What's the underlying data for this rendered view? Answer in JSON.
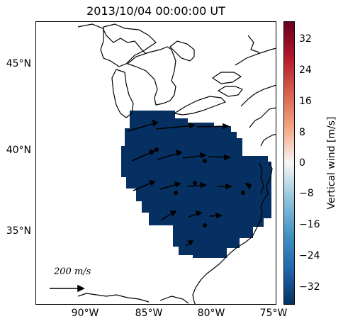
{
  "title": "2013/10/04 00:00:00 UT",
  "latitude_labels": [
    "45°N",
    "40°N",
    "35°N"
  ],
  "longitude_labels": [
    "90°W",
    "85°W",
    "80°W",
    "75°W"
  ],
  "colorbar": {
    "label": "Vertical wind [m/s]",
    "ticks": [
      "32",
      "24",
      "16",
      "8",
      "0",
      "−8",
      "−16",
      "−24",
      "−32"
    ],
    "range": [
      -36,
      36
    ],
    "colors": [
      "#053061",
      "#2166ac",
      "#4393c3",
      "#92c5de",
      "#f7f7f7",
      "#f4a582",
      "#d6604d",
      "#b2182b",
      "#67001f"
    ]
  },
  "map": {
    "region": "Great Lakes and US East Coast",
    "field_color": "#053061",
    "field_value": "≈ −36 m/s",
    "arrow_color": "#000000",
    "scale_label": "200 m/s"
  }
}
